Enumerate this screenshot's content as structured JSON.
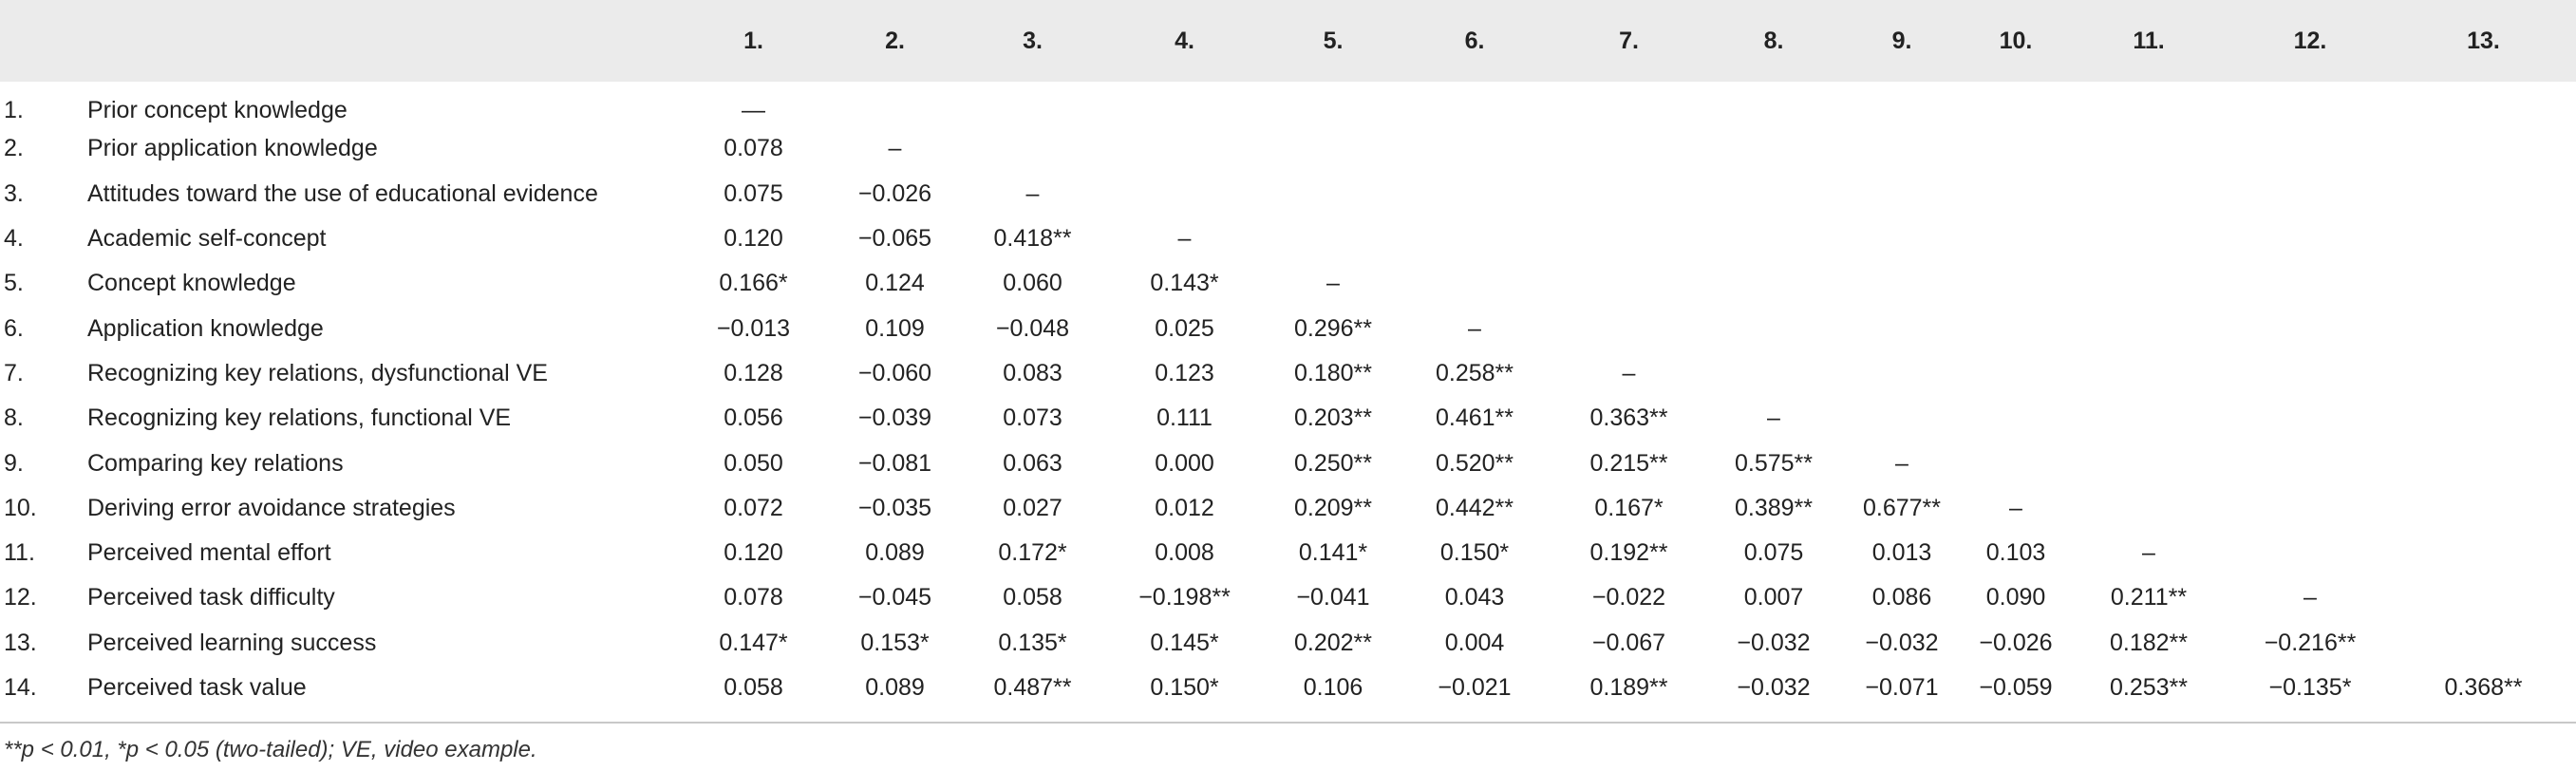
{
  "table": {
    "header": [
      "",
      "",
      "1.",
      "2.",
      "3.",
      "4.",
      "5.",
      "6.",
      "7.",
      "8.",
      "9.",
      "10.",
      "11.",
      "12.",
      "13."
    ],
    "rows": [
      {
        "num": "1.",
        "label": "Prior concept knowledge",
        "cells": [
          "—",
          "",
          "",
          "",
          "",
          "",
          "",
          "",
          "",
          "",
          "",
          "",
          ""
        ]
      },
      {
        "num": "2.",
        "label": "Prior application knowledge",
        "cells": [
          "0.078",
          "–",
          "",
          "",
          "",
          "",
          "",
          "",
          "",
          "",
          "",
          "",
          ""
        ]
      },
      {
        "num": "3.",
        "label": "Attitudes toward the use of educational evidence",
        "cells": [
          "0.075",
          "−0.026",
          "–",
          "",
          "",
          "",
          "",
          "",
          "",
          "",
          "",
          "",
          ""
        ]
      },
      {
        "num": "4.",
        "label": "Academic self-concept",
        "cells": [
          "0.120",
          "−0.065",
          "0.418**",
          "–",
          "",
          "",
          "",
          "",
          "",
          "",
          "",
          "",
          ""
        ]
      },
      {
        "num": "5.",
        "label": "Concept knowledge",
        "cells": [
          "0.166*",
          "0.124",
          "0.060",
          "0.143*",
          "–",
          "",
          "",
          "",
          "",
          "",
          "",
          "",
          ""
        ]
      },
      {
        "num": "6.",
        "label": "Application knowledge",
        "cells": [
          "−0.013",
          "0.109",
          "−0.048",
          "0.025",
          "0.296**",
          "–",
          "",
          "",
          "",
          "",
          "",
          "",
          ""
        ]
      },
      {
        "num": "7.",
        "label": "Recognizing key relations, dysfunctional VE",
        "cells": [
          "0.128",
          "−0.060",
          "0.083",
          "0.123",
          "0.180**",
          "0.258**",
          "–",
          "",
          "",
          "",
          "",
          "",
          ""
        ]
      },
      {
        "num": "8.",
        "label": "Recognizing key relations, functional VE",
        "cells": [
          "0.056",
          "−0.039",
          "0.073",
          "0.111",
          "0.203**",
          "0.461**",
          "0.363**",
          "–",
          "",
          "",
          "",
          "",
          ""
        ]
      },
      {
        "num": "9.",
        "label": "Comparing key relations",
        "cells": [
          "0.050",
          "−0.081",
          "0.063",
          "0.000",
          "0.250**",
          "0.520**",
          "0.215**",
          "0.575**",
          "–",
          "",
          "",
          "",
          ""
        ]
      },
      {
        "num": "10.",
        "label": "Deriving error avoidance strategies",
        "cells": [
          "0.072",
          "−0.035",
          "0.027",
          "0.012",
          "0.209**",
          "0.442**",
          "0.167*",
          "0.389**",
          "0.677**",
          "–",
          "",
          "",
          ""
        ]
      },
      {
        "num": "11.",
        "label": "Perceived mental effort",
        "cells": [
          "0.120",
          "0.089",
          "0.172*",
          "0.008",
          "0.141*",
          "0.150*",
          "0.192**",
          "0.075",
          "0.013",
          "0.103",
          "–",
          "",
          ""
        ]
      },
      {
        "num": "12.",
        "label": "Perceived task difficulty",
        "cells": [
          "0.078",
          "−0.045",
          "0.058",
          "−0.198**",
          "−0.041",
          "0.043",
          "−0.022",
          "0.007",
          "0.086",
          "0.090",
          "0.211**",
          "–",
          ""
        ]
      },
      {
        "num": "13.",
        "label": "Perceived learning success",
        "cells": [
          "0.147*",
          "0.153*",
          "0.135*",
          "0.145*",
          "0.202**",
          "0.004",
          "−0.067",
          "−0.032",
          "−0.032",
          "−0.026",
          "0.182**",
          "−0.216**",
          ""
        ]
      },
      {
        "num": "14.",
        "label": "Perceived task value",
        "cells": [
          "0.058",
          "0.089",
          "0.487**",
          "0.150*",
          "0.106",
          "−0.021",
          "0.189**",
          "−0.032",
          "−0.071",
          "−0.059",
          "0.253**",
          "−0.135*",
          "0.368**"
        ]
      }
    ]
  },
  "footnote": "**p < 0.01, *p < 0.05 (two-tailed); VE, video example."
}
